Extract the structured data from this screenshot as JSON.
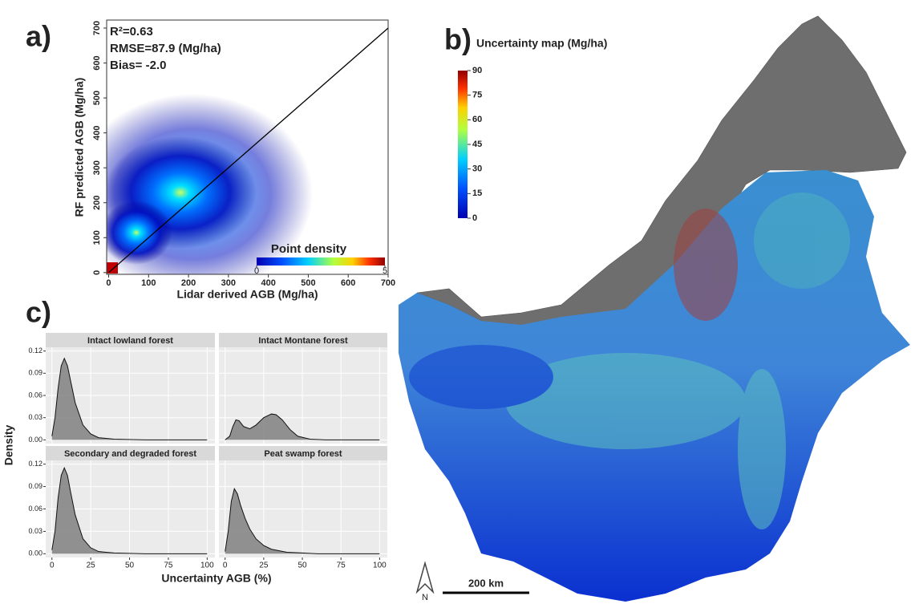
{
  "chart_data": [
    {
      "type": "density-scatter",
      "panel_label": "a)",
      "annotations": [
        "R²=0.63",
        "RMSE=87.9 (Mg/ha)",
        "Bias= -2.0"
      ],
      "xlabel": "Lidar derived AGB (Mg/ha)",
      "ylabel": "RF predicted AGB (Mg/ha)",
      "xlim": [
        -5,
        700
      ],
      "ylim": [
        -5,
        723
      ],
      "xticks": [
        0,
        100,
        200,
        300,
        400,
        500,
        600,
        700
      ],
      "yticks": [
        0,
        100,
        200,
        300,
        400,
        500,
        600,
        700
      ],
      "reference_line": {
        "x": [
          0,
          700
        ],
        "y": [
          0,
          700
        ],
        "color": "#000000"
      },
      "colorbar": {
        "label": "Point density",
        "lim": [
          0,
          5
        ],
        "ticks": [
          0,
          5
        ]
      }
    },
    {
      "type": "map",
      "panel_label": "b)",
      "title": "Uncertainty map (Mg/ha)",
      "colorbar": {
        "lim": [
          0,
          90
        ],
        "ticks": [
          0,
          15,
          30,
          45,
          60,
          75,
          90
        ]
      },
      "scale_bar": "200 km",
      "north_arrow": "N"
    },
    {
      "type": "density",
      "panel_label": "c)",
      "xlabel": "Uncertainty AGB (%)",
      "ylabel": "Density",
      "xlim": [
        -4,
        105
      ],
      "ylim": [
        -0.005,
        0.125
      ],
      "xticks": [
        0,
        25,
        50,
        75,
        100
      ],
      "yticks": [
        {
          "value": 0,
          "label": "0.00"
        },
        0.03,
        0.06,
        0.09,
        0.12
      ],
      "color": "#808080",
      "panels": [
        {
          "title": "Intact lowland forest",
          "x": [
            0,
            2,
            4,
            6,
            8,
            10,
            12,
            15,
            20,
            25,
            30,
            40,
            60,
            100
          ],
          "values": [
            0.005,
            0.03,
            0.07,
            0.1,
            0.11,
            0.1,
            0.08,
            0.05,
            0.02,
            0.008,
            0.003,
            0.001,
            0,
            0
          ]
        },
        {
          "title": "Intact Montane forest",
          "x": [
            0,
            3,
            5,
            7,
            9,
            12,
            16,
            20,
            25,
            30,
            33,
            37,
            42,
            47,
            55,
            65,
            100
          ],
          "values": [
            0,
            0.005,
            0.018,
            0.027,
            0.026,
            0.018,
            0.015,
            0.02,
            0.03,
            0.035,
            0.034,
            0.027,
            0.014,
            0.005,
            0.001,
            0,
            0
          ]
        },
        {
          "title": "Secondary and degraded forest",
          "x": [
            0,
            2,
            4,
            6,
            8,
            10,
            12,
            15,
            20,
            25,
            30,
            40,
            60,
            100
          ],
          "values": [
            0.005,
            0.03,
            0.075,
            0.105,
            0.115,
            0.105,
            0.083,
            0.052,
            0.02,
            0.008,
            0.003,
            0.001,
            0,
            0
          ]
        },
        {
          "title": "Peat swamp forest",
          "x": [
            0,
            2,
            4,
            6,
            8,
            10,
            13,
            16,
            20,
            25,
            30,
            40,
            50,
            60,
            100
          ],
          "values": [
            0.003,
            0.03,
            0.07,
            0.087,
            0.08,
            0.065,
            0.047,
            0.033,
            0.02,
            0.011,
            0.006,
            0.002,
            0.001,
            0,
            0
          ]
        }
      ]
    }
  ]
}
